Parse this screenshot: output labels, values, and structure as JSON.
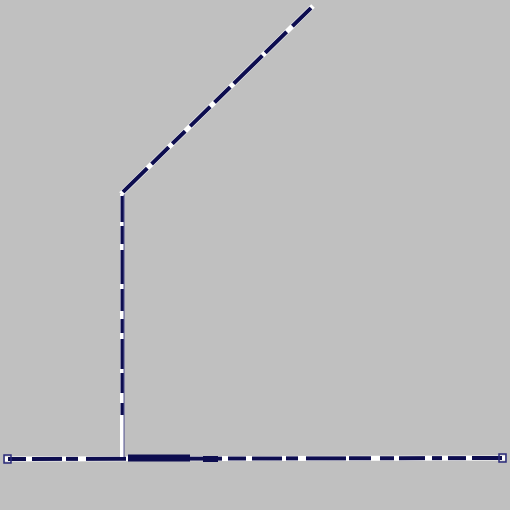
{
  "colors": {
    "background": "#c0c0c0",
    "stroke_dark": "#0d0d4f",
    "stroke_light": "#ffffff",
    "stroke_outline": "#2a2a7a"
  }
}
